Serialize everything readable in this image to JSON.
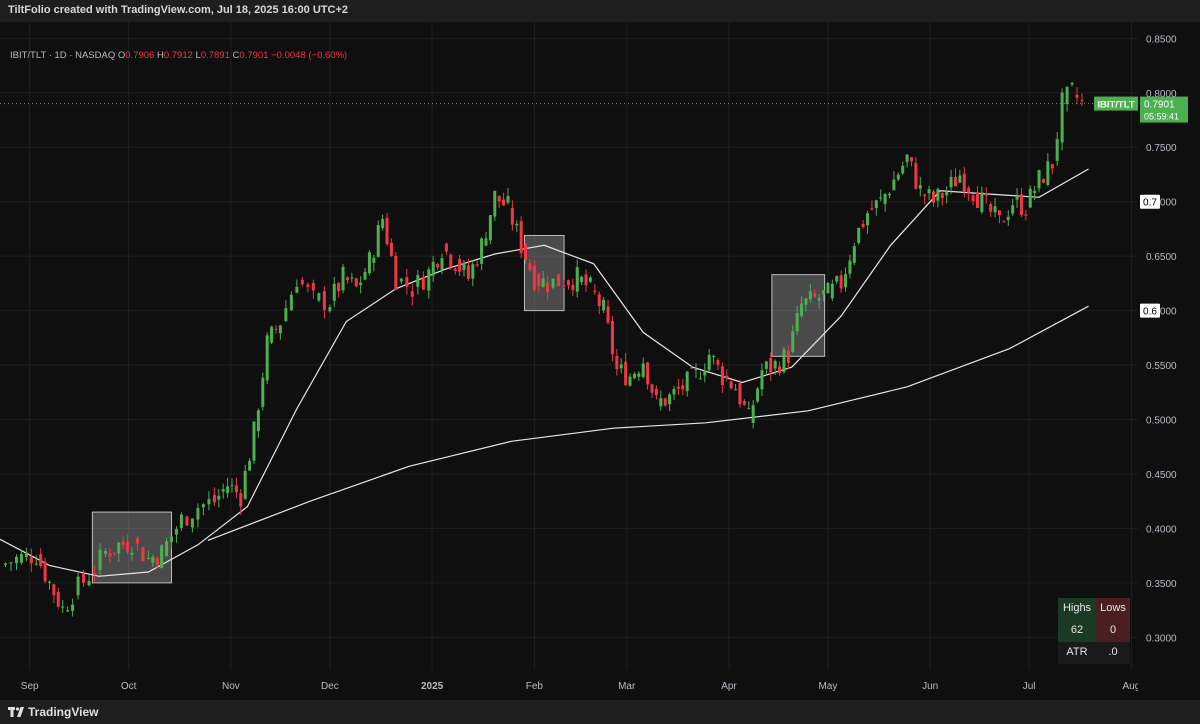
{
  "header": {
    "title": "TiltFolio created with TradingView.com, Jul 18, 2025 16:00 UTC+2"
  },
  "legend": {
    "symbol": "IBIT/TLT · 1D · NASDAQ",
    "o_label": "O",
    "o": "0.7906",
    "h_label": "H",
    "h": "0.7912",
    "l_label": "L",
    "l": "0.7891",
    "c_label": "C",
    "c": "0.7901",
    "change": "−0.0048 (−0.60%)"
  },
  "price_tag": {
    "name": "IBIT/TLT",
    "price": "0.7901",
    "countdown": "05:59:41",
    "color": "#4caf50"
  },
  "hlines": [
    {
      "label": "0.7"
    },
    {
      "label": "0.6"
    }
  ],
  "stats_table": {
    "highs_label": "Highs",
    "lows_label": "Lows",
    "highs_value": "62",
    "lows_value": "0",
    "atr_label": "ATR",
    "atr_value": ".0"
  },
  "footer": {
    "brand": "TradingView"
  },
  "chart_data": {
    "type": "candlestick",
    "title": "",
    "up_color": "#4caf50",
    "down_color": "#f23645",
    "y_ticks": [
      "0.8500",
      "0.8000",
      "0.7500",
      "0.7000",
      "0.6500",
      "0.6000",
      "0.5500",
      "0.5000",
      "0.4500",
      "0.4000",
      "0.3500",
      "0.3000"
    ],
    "ylim": [
      0.27,
      0.865
    ],
    "x_ticks": [
      "Sep",
      "Oct",
      "Nov",
      "Dec",
      "2025",
      "Feb",
      "Mar",
      "Apr",
      "May",
      "Jun",
      "Jul",
      "Aug"
    ],
    "x_start": "2024-08-23",
    "x_end": "2025-08-03",
    "series_closes": [
      {
        "date": "2024-08-23",
        "close": 0.366
      },
      {
        "date": "2024-08-28",
        "close": 0.372
      },
      {
        "date": "2024-09-03",
        "close": 0.376
      },
      {
        "date": "2024-09-07",
        "close": 0.35
      },
      {
        "date": "2024-09-11",
        "close": 0.326
      },
      {
        "date": "2024-09-14",
        "close": 0.34
      },
      {
        "date": "2024-09-19",
        "close": 0.357
      },
      {
        "date": "2024-09-24",
        "close": 0.378
      },
      {
        "date": "2024-09-28",
        "close": 0.385
      },
      {
        "date": "2024-10-02",
        "close": 0.388
      },
      {
        "date": "2024-10-07",
        "close": 0.372
      },
      {
        "date": "2024-10-11",
        "close": 0.378
      },
      {
        "date": "2024-10-17",
        "close": 0.408
      },
      {
        "date": "2024-10-22",
        "close": 0.42
      },
      {
        "date": "2024-10-27",
        "close": 0.425
      },
      {
        "date": "2024-10-31",
        "close": 0.44
      },
      {
        "date": "2024-11-04",
        "close": 0.43
      },
      {
        "date": "2024-11-08",
        "close": 0.488
      },
      {
        "date": "2024-11-12",
        "close": 0.57
      },
      {
        "date": "2024-11-16",
        "close": 0.59
      },
      {
        "date": "2024-11-21",
        "close": 0.63
      },
      {
        "date": "2024-11-26",
        "close": 0.61
      },
      {
        "date": "2024-12-01",
        "close": 0.608
      },
      {
        "date": "2024-12-05",
        "close": 0.63
      },
      {
        "date": "2024-12-09",
        "close": 0.62
      },
      {
        "date": "2024-12-13",
        "close": 0.645
      },
      {
        "date": "2024-12-17",
        "close": 0.685
      },
      {
        "date": "2024-12-21",
        "close": 0.63
      },
      {
        "date": "2024-12-26",
        "close": 0.62
      },
      {
        "date": "2024-12-31",
        "close": 0.635
      },
      {
        "date": "2025-01-04",
        "close": 0.658
      },
      {
        "date": "2025-01-08",
        "close": 0.645
      },
      {
        "date": "2025-01-12",
        "close": 0.63
      },
      {
        "date": "2025-01-16",
        "close": 0.66
      },
      {
        "date": "2025-01-20",
        "close": 0.705
      },
      {
        "date": "2025-01-24",
        "close": 0.695
      },
      {
        "date": "2025-01-28",
        "close": 0.66
      },
      {
        "date": "2025-02-01",
        "close": 0.63
      },
      {
        "date": "2025-02-05",
        "close": 0.625
      },
      {
        "date": "2025-02-10",
        "close": 0.628
      },
      {
        "date": "2025-02-14",
        "close": 0.63
      },
      {
        "date": "2025-02-18",
        "close": 0.62
      },
      {
        "date": "2025-02-22",
        "close": 0.6
      },
      {
        "date": "2025-02-26",
        "close": 0.545
      },
      {
        "date": "2025-03-02",
        "close": 0.54
      },
      {
        "date": "2025-03-06",
        "close": 0.555
      },
      {
        "date": "2025-03-10",
        "close": 0.515
      },
      {
        "date": "2025-03-14",
        "close": 0.52
      },
      {
        "date": "2025-03-18",
        "close": 0.53
      },
      {
        "date": "2025-03-22",
        "close": 0.54
      },
      {
        "date": "2025-03-26",
        "close": 0.56
      },
      {
        "date": "2025-03-30",
        "close": 0.54
      },
      {
        "date": "2025-04-03",
        "close": 0.53
      },
      {
        "date": "2025-04-07",
        "close": 0.5
      },
      {
        "date": "2025-04-11",
        "close": 0.545
      },
      {
        "date": "2025-04-15",
        "close": 0.55
      },
      {
        "date": "2025-04-19",
        "close": 0.56
      },
      {
        "date": "2025-04-23",
        "close": 0.605
      },
      {
        "date": "2025-04-27",
        "close": 0.61
      },
      {
        "date": "2025-05-01",
        "close": 0.615
      },
      {
        "date": "2025-05-05",
        "close": 0.625
      },
      {
        "date": "2025-05-09",
        "close": 0.665
      },
      {
        "date": "2025-05-13",
        "close": 0.69
      },
      {
        "date": "2025-05-17",
        "close": 0.7
      },
      {
        "date": "2025-05-21",
        "close": 0.72
      },
      {
        "date": "2025-05-25",
        "close": 0.74
      },
      {
        "date": "2025-05-29",
        "close": 0.71
      },
      {
        "date": "2025-06-02",
        "close": 0.7
      },
      {
        "date": "2025-06-06",
        "close": 0.71
      },
      {
        "date": "2025-06-10",
        "close": 0.725
      },
      {
        "date": "2025-06-14",
        "close": 0.71
      },
      {
        "date": "2025-06-18",
        "close": 0.695
      },
      {
        "date": "2025-06-22",
        "close": 0.68
      },
      {
        "date": "2025-06-26",
        "close": 0.7
      },
      {
        "date": "2025-06-30",
        "close": 0.695
      },
      {
        "date": "2025-07-04",
        "close": 0.72
      },
      {
        "date": "2025-07-08",
        "close": 0.735
      },
      {
        "date": "2025-07-11",
        "close": 0.79
      },
      {
        "date": "2025-07-14",
        "close": 0.8
      },
      {
        "date": "2025-07-17",
        "close": 0.7901
      }
    ],
    "ma_fast": [
      {
        "date": "2024-08-23",
        "value": 0.39
      },
      {
        "date": "2024-09-07",
        "value": 0.366
      },
      {
        "date": "2024-09-22",
        "value": 0.356
      },
      {
        "date": "2024-10-07",
        "value": 0.36
      },
      {
        "date": "2024-10-22",
        "value": 0.385
      },
      {
        "date": "2024-11-06",
        "value": 0.42
      },
      {
        "date": "2024-11-21",
        "value": 0.51
      },
      {
        "date": "2024-12-06",
        "value": 0.59
      },
      {
        "date": "2024-12-21",
        "value": 0.62
      },
      {
        "date": "2025-01-05",
        "value": 0.638
      },
      {
        "date": "2025-01-20",
        "value": 0.652
      },
      {
        "date": "2025-02-04",
        "value": 0.66
      },
      {
        "date": "2025-02-19",
        "value": 0.643
      },
      {
        "date": "2025-03-06",
        "value": 0.58
      },
      {
        "date": "2025-03-21",
        "value": 0.548
      },
      {
        "date": "2025-04-05",
        "value": 0.534
      },
      {
        "date": "2025-04-20",
        "value": 0.548
      },
      {
        "date": "2025-05-05",
        "value": 0.595
      },
      {
        "date": "2025-05-20",
        "value": 0.66
      },
      {
        "date": "2025-06-04",
        "value": 0.71
      },
      {
        "date": "2025-06-19",
        "value": 0.707
      },
      {
        "date": "2025-07-04",
        "value": 0.704
      },
      {
        "date": "2025-07-19",
        "value": 0.73
      }
    ],
    "ma_slow": [
      {
        "date": "2024-10-25",
        "value": 0.389
      },
      {
        "date": "2024-11-25",
        "value": 0.425
      },
      {
        "date": "2024-12-25",
        "value": 0.457
      },
      {
        "date": "2025-01-25",
        "value": 0.48
      },
      {
        "date": "2025-02-25",
        "value": 0.492
      },
      {
        "date": "2025-03-25",
        "value": 0.497
      },
      {
        "date": "2025-04-25",
        "value": 0.508
      },
      {
        "date": "2025-05-25",
        "value": 0.53
      },
      {
        "date": "2025-06-25",
        "value": 0.565
      },
      {
        "date": "2025-07-19",
        "value": 0.604
      }
    ],
    "highlight_boxes": [
      {
        "from": "2024-09-20",
        "to": "2024-10-14",
        "low": 0.35,
        "high": 0.415
      },
      {
        "from": "2025-01-29",
        "to": "2025-02-10",
        "low": 0.6,
        "high": 0.669
      },
      {
        "from": "2025-04-14",
        "to": "2025-04-30",
        "low": 0.558,
        "high": 0.633
      }
    ],
    "last_price": 0.7901
  }
}
